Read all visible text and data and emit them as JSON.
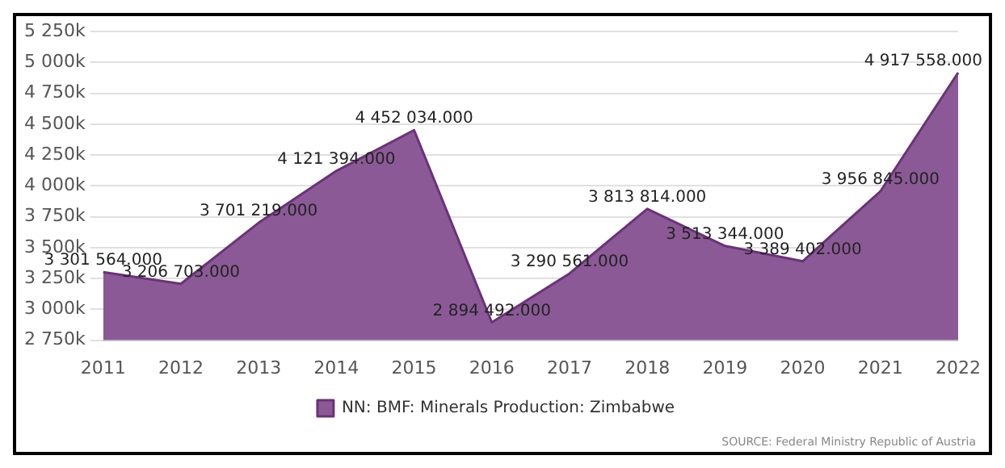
{
  "chart_data": {
    "type": "area",
    "categories": [
      "2011",
      "2012",
      "2013",
      "2014",
      "2015",
      "2016",
      "2017",
      "2018",
      "2019",
      "2020",
      "2021",
      "2022"
    ],
    "series": [
      {
        "name": "NN: BMF: Minerals Production: Zimbabwe",
        "color": "#8b5a96",
        "values": [
          3301564,
          3206703,
          3701219,
          4121394,
          4452034,
          2894492,
          3290561,
          3813814,
          3513344,
          3389402,
          3956845,
          4917558
        ],
        "value_labels": [
          "3 301 564.000",
          "3 206 703.000",
          "3 701 219.000",
          "4 121 394.000",
          "4 452 034.000",
          "2 894 492.000",
          "3 290 561.000",
          "3 813 814.000",
          "3 513 344.000",
          "3 389 402.000",
          "3 956 845.000",
          "4 917 558.000"
        ]
      }
    ],
    "ylim": [
      2750000,
      5250000
    ],
    "yticks": [
      {
        "value": 2750000,
        "label": "2 750k"
      },
      {
        "value": 3000000,
        "label": "3 000k"
      },
      {
        "value": 3250000,
        "label": "3 250k"
      },
      {
        "value": 3500000,
        "label": "3 500k"
      },
      {
        "value": 3750000,
        "label": "3 750k"
      },
      {
        "value": 4000000,
        "label": "4 000k"
      },
      {
        "value": 4250000,
        "label": "4 250k"
      },
      {
        "value": 4500000,
        "label": "4 500k"
      },
      {
        "value": 4750000,
        "label": "4 750k"
      },
      {
        "value": 5000000,
        "label": "5 000k"
      },
      {
        "value": 5250000,
        "label": "5 250k"
      }
    ],
    "grid": "y",
    "legend": "bottom",
    "marker": "none",
    "annotations": [
      "SOURCE: Federal Ministry Republic of Austria"
    ]
  }
}
